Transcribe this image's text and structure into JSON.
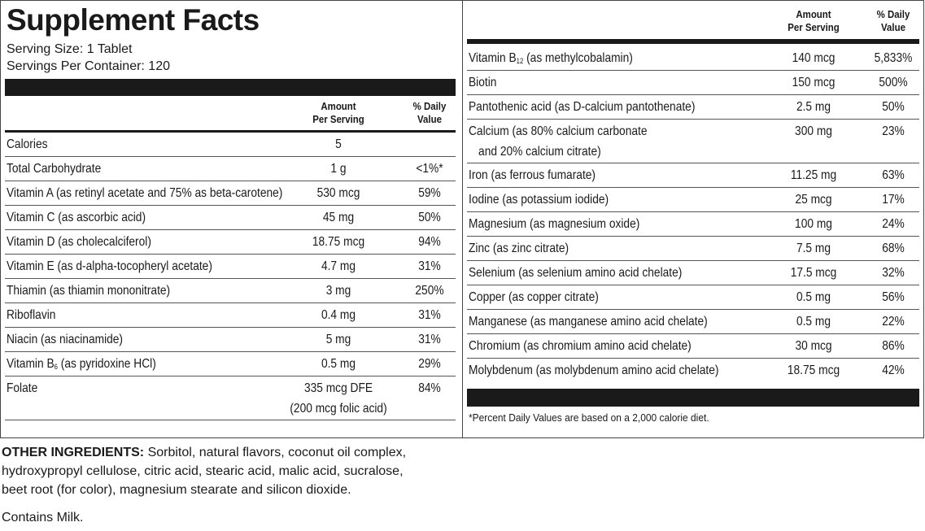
{
  "title": "Supplement Facts",
  "serving_size": "Serving Size: 1 Tablet",
  "servings_per_container": "Servings Per Container: 120",
  "left_table": {
    "header": {
      "amount": [
        "Amount",
        "Per Serving"
      ],
      "dv": [
        "% Daily",
        "Value"
      ]
    },
    "rows": [
      {
        "name": [
          "Calories"
        ],
        "amount": [
          "5"
        ]
      },
      {
        "name": [
          "Total Carbohydrate"
        ],
        "amount": [
          "1 g"
        ],
        "dv": "<1%*"
      },
      {
        "name": [
          "Vitamin A (as retinyl acetate and 75% as beta-carotene)"
        ],
        "amount": [
          "530 mcg"
        ],
        "dv": "59%"
      },
      {
        "name": [
          "Vitamin C (as ascorbic acid)"
        ],
        "amount": [
          "45 mg"
        ],
        "dv": "50%"
      },
      {
        "name": [
          "Vitamin D (as cholecalciferol)"
        ],
        "amount": [
          "18.75 mcg"
        ],
        "dv": "94%"
      },
      {
        "name": [
          "Vitamin E (as d-alpha-tocopheryl acetate)"
        ],
        "amount": [
          "4.7 mg"
        ],
        "dv": "31%"
      },
      {
        "name": [
          "Thiamin (as thiamin mononitrate)"
        ],
        "amount": [
          "3 mg"
        ],
        "dv": "250%"
      },
      {
        "name": [
          "Riboflavin"
        ],
        "amount": [
          "0.4 mg"
        ],
        "dv": "31%"
      },
      {
        "name": [
          "Niacin (as niacinamide)"
        ],
        "amount": [
          "5 mg"
        ],
        "dv": "31%"
      },
      {
        "name": [
          "Vitamin B"
        ],
        "sub": "6",
        "name_rest": "(as pyridoxine HCl)",
        "amount": [
          "0.5 mg"
        ],
        "dv": "29%"
      },
      {
        "name": [
          "Folate"
        ],
        "amount": [
          "335 mcg DFE",
          "(200 mcg folic acid)"
        ],
        "dv": "84%"
      }
    ]
  },
  "right_table": {
    "header": {
      "amount": [
        "Amount",
        "Per Serving"
      ],
      "dv": [
        "% Daily",
        "Value"
      ]
    },
    "rows": [
      {
        "name": [
          "Vitamin B"
        ],
        "sub": "12",
        "name_rest": "(as methylcobalamin)",
        "amount": [
          "140 mcg"
        ],
        "dv": "5,833%"
      },
      {
        "name": [
          "Biotin"
        ],
        "amount": [
          "150 mcg"
        ],
        "dv": "500%"
      },
      {
        "name": [
          "Pantothenic acid (as D-calcium pantothenate)"
        ],
        "amount": [
          "2.5 mg"
        ],
        "dv": "50%"
      },
      {
        "name": [
          "Calcium (as 80% calcium carbonate",
          "and 20% calcium citrate)"
        ],
        "amount": [
          "300 mg"
        ],
        "dv": "23%"
      },
      {
        "name": [
          "Iron (as ferrous fumarate)"
        ],
        "amount": [
          "11.25 mg"
        ],
        "dv": "63%"
      },
      {
        "name": [
          "Iodine (as potassium iodide)"
        ],
        "amount": [
          "25 mcg"
        ],
        "dv": "17%"
      },
      {
        "name": [
          "Magnesium (as magnesium oxide)"
        ],
        "amount": [
          "100 mg"
        ],
        "dv": "24%"
      },
      {
        "name": [
          "Zinc (as zinc citrate)"
        ],
        "amount": [
          "7.5 mg"
        ],
        "dv": "68%"
      },
      {
        "name": [
          "Selenium (as selenium amino acid chelate)"
        ],
        "amount": [
          "17.5 mcg"
        ],
        "dv": "32%"
      },
      {
        "name": [
          "Copper (as copper citrate)"
        ],
        "amount": [
          "0.5 mg"
        ],
        "dv": "56%"
      },
      {
        "name": [
          "Manganese (as manganese amino acid chelate)"
        ],
        "amount": [
          "0.5 mg"
        ],
        "dv": "22%"
      },
      {
        "name": [
          "Chromium (as chromium amino acid chelate)"
        ],
        "amount": [
          "30 mcg"
        ],
        "dv": "86%"
      },
      {
        "name": [
          "Molybdenum (as molybdenum amino acid chelate)"
        ],
        "amount": [
          "18.75 mcg"
        ],
        "dv": "42%"
      }
    ]
  },
  "footnote": "*Percent Daily Values are based on a 2,000 calorie diet.",
  "other_ingredients": {
    "label": "OTHER INGREDIENTS:",
    "text": "Sorbitol, natural flavors, coconut oil complex, hydroxypropyl cellulose, citric acid, stearic acid, malic acid, sucralose, beet root (for color), magnesium stearate and silicon dioxide."
  },
  "contains": "Contains Milk."
}
